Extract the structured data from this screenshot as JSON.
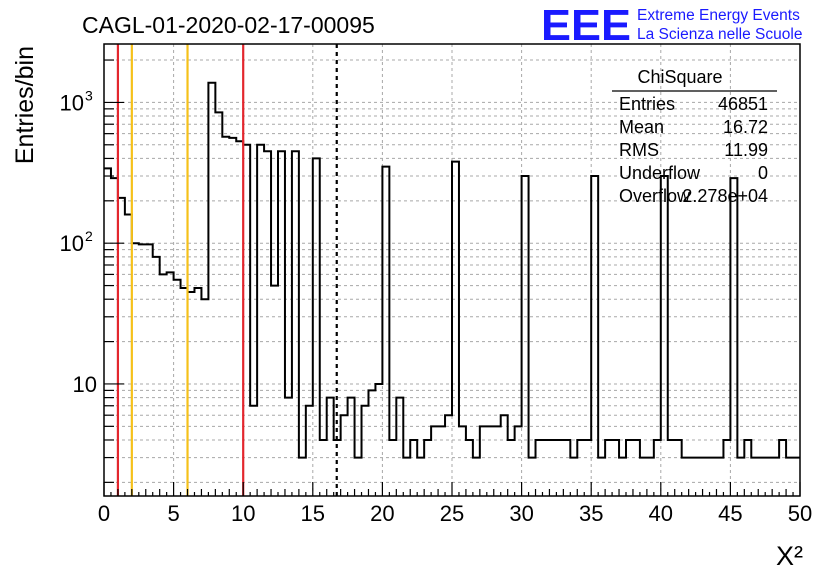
{
  "title": "CAGL-01-2020-02-17-00095",
  "logo": {
    "mark": "EEE",
    "line1": "Extreme Energy Events",
    "line2": "La Scienza nelle Scuole",
    "color": "#1a1aff"
  },
  "stats": {
    "name": "ChiSquare",
    "rows": [
      {
        "label": "Entries",
        "value": "46851"
      },
      {
        "label": "Mean",
        "value": "16.72"
      },
      {
        "label": "RMS",
        "value": "11.99"
      },
      {
        "label": "Underflow",
        "value": "0"
      },
      {
        "label": "Overflow",
        "value": "2.278e+04"
      }
    ]
  },
  "chart_data": {
    "type": "bar",
    "subtype": "histogram-step",
    "xlabel": "X²",
    "ylabel": "Entries/bin",
    "xlim": [
      0,
      50
    ],
    "ylim": [
      1.6,
      2600
    ],
    "yscale": "log",
    "grid": true,
    "bin_width": 0.5,
    "x_ticks": [
      "0",
      "5",
      "10",
      "15",
      "20",
      "25",
      "30",
      "35",
      "40",
      "45",
      "50"
    ],
    "y_ticks": [
      {
        "value": 10,
        "label": "10"
      },
      {
        "value": 100,
        "label": "10",
        "exp": "2"
      },
      {
        "value": 1000,
        "label": "10",
        "exp": "3"
      }
    ],
    "values": [
      340,
      290,
      210,
      160,
      100,
      98,
      98,
      80,
      60,
      62,
      55,
      48,
      45,
      48,
      40,
      1380,
      850,
      570,
      560,
      530,
      500,
      7,
      500,
      450,
      50,
      450,
      8,
      450,
      3,
      7,
      400,
      4,
      8,
      4,
      6,
      8,
      3,
      7,
      9,
      10,
      350,
      4,
      8,
      3,
      4,
      3,
      4,
      5,
      5,
      6,
      380,
      5,
      4,
      3,
      5,
      5,
      5,
      6,
      4,
      5,
      300,
      3,
      4,
      4,
      4,
      4,
      4,
      3,
      4,
      4,
      300,
      3,
      4,
      4,
      3,
      4,
      4,
      3,
      3,
      4,
      300,
      4,
      4,
      3,
      3,
      3,
      3,
      3,
      3,
      4,
      290,
      3,
      4,
      3,
      3,
      3,
      3,
      4,
      3,
      3
    ],
    "lines": [
      {
        "x": 1,
        "color": "#e3262d",
        "style": "solid"
      },
      {
        "x": 2,
        "color": "#f5c11a",
        "style": "solid"
      },
      {
        "x": 6,
        "color": "#f5c11a",
        "style": "solid"
      },
      {
        "x": 10,
        "color": "#e3262d",
        "style": "solid"
      },
      {
        "x": 16.72,
        "color": "#000000",
        "style": "dashed"
      }
    ]
  }
}
